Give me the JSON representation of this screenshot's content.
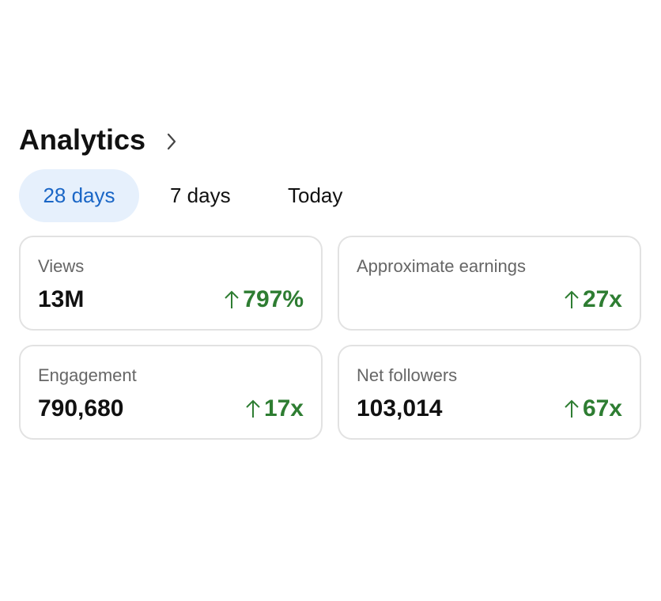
{
  "header": {
    "title": "Analytics"
  },
  "tabs": [
    "28 days",
    "7 days",
    "Today"
  ],
  "cards": [
    {
      "label": "Views",
      "value": "13M",
      "change": "797%"
    },
    {
      "label": "Approximate earnings",
      "change": "27x"
    },
    {
      "label": "Engagement",
      "value": "790,680",
      "change": "17x"
    },
    {
      "label": "Net followers",
      "value": "103,014",
      "change": "67x"
    }
  ]
}
